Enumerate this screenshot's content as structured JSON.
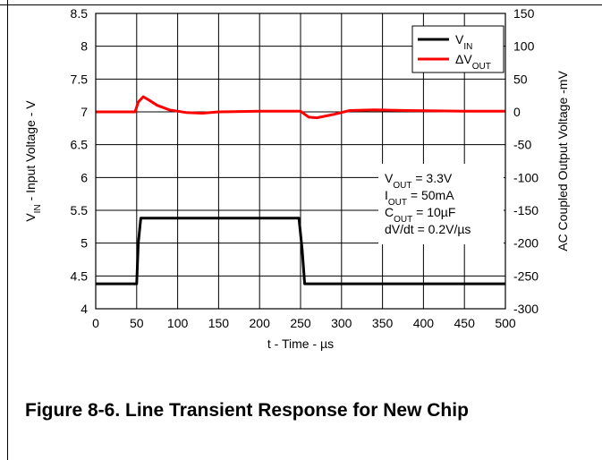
{
  "caption": "Figure 8-6. Line Transient Response for New Chip",
  "chart_data": {
    "type": "line",
    "title": "",
    "xlabel": "t - Time - µs",
    "ylabel_left": {
      "base": "V",
      "sub": "IN",
      "rest": " - Input Voltage - V"
    },
    "ylabel_right": "AC Coupled Output Voltage -mV",
    "xlim": [
      0,
      500
    ],
    "ylim_left": [
      4,
      8.5
    ],
    "ylim_right": [
      -300,
      150
    ],
    "x_ticks": [
      0,
      50,
      100,
      150,
      200,
      250,
      300,
      350,
      400,
      450,
      500
    ],
    "y_left_ticks": [
      4,
      4.5,
      5,
      5.5,
      6,
      6.5,
      7,
      7.5,
      8,
      8.5
    ],
    "y_right_ticks": [
      -300,
      -250,
      -200,
      -150,
      -100,
      -50,
      0,
      50,
      100,
      150
    ],
    "grid": true,
    "legend_position": "top-right",
    "legend": [
      {
        "base": "V",
        "sub": "IN",
        "color": "#000000"
      },
      {
        "base": "ΔV",
        "sub": "OUT",
        "color": "#ff0000"
      }
    ],
    "annotation": [
      {
        "base": "V",
        "sub": "OUT",
        "rest": " = 3.3V"
      },
      {
        "base": "I",
        "sub": "OUT",
        "rest": " = 50mA"
      },
      {
        "base": "C",
        "sub": "OUT",
        "rest": " = 10µF"
      },
      {
        "base": "dV/dt = 0.2V/µs",
        "sub": "",
        "rest": ""
      }
    ],
    "series": [
      {
        "name": "VIN",
        "axis": "left",
        "color": "#000000",
        "x": [
          0,
          50,
          52,
          55,
          248,
          252,
          255,
          500
        ],
        "y": [
          4.38,
          4.38,
          5.0,
          5.38,
          5.38,
          4.9,
          4.38,
          4.38
        ]
      },
      {
        "name": "ΔVOUT",
        "axis": "right",
        "color": "#ff0000",
        "x": [
          0,
          48,
          52,
          58,
          65,
          75,
          90,
          110,
          130,
          150,
          200,
          250,
          260,
          270,
          290,
          310,
          340,
          380,
          450,
          500
        ],
        "y": [
          0,
          0,
          15,
          23,
          18,
          10,
          3,
          -1,
          -2,
          0,
          1,
          1,
          -8,
          -9,
          -4,
          2,
          3,
          2,
          1,
          1
        ]
      }
    ]
  }
}
